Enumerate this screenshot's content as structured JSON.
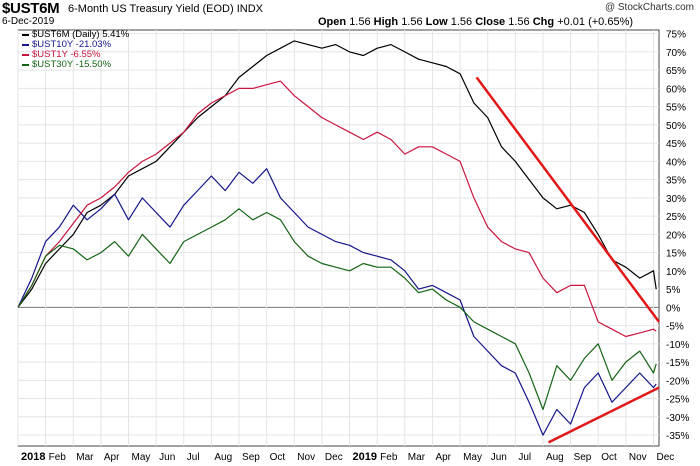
{
  "header": {
    "symbol": "$UST6M",
    "description": "6-Month US Treasury Yield (EOD)",
    "exchange": "INDX",
    "date": "6-Dec-2019",
    "watermark": "@ StockCharts.com",
    "open_label": "Open",
    "open": "1.56",
    "high_label": "High",
    "high": "1.56",
    "low_label": "Low",
    "low": "1.56",
    "close_label": "Close",
    "close": "1.56",
    "chg_label": "Chg",
    "chg": "+0.01 (+0.65%)"
  },
  "chart_data": {
    "type": "line",
    "ylim": [
      -38,
      76
    ],
    "yticks": [
      "75%",
      "70%",
      "65%",
      "60%",
      "55%",
      "50%",
      "45%",
      "40%",
      "35%",
      "30%",
      "25%",
      "20%",
      "15%",
      "10%",
      "5%",
      "0%",
      "-5%",
      "-10%",
      "-15%",
      "-20%",
      "-25%",
      "-30%",
      "-35%"
    ],
    "ytick_values": [
      75,
      70,
      65,
      60,
      55,
      50,
      45,
      40,
      35,
      30,
      25,
      20,
      15,
      10,
      5,
      0,
      -5,
      -10,
      -15,
      -20,
      -25,
      -30,
      -35
    ],
    "xticks": [
      "2018",
      "Feb",
      "Mar",
      "Apr",
      "May",
      "Jun",
      "Jul",
      "Aug",
      "Sep",
      "Oct",
      "Nov",
      "Dec",
      "2019",
      "Feb",
      "Mar",
      "Apr",
      "May",
      "Jun",
      "Jul",
      "Aug",
      "Sep",
      "Oct",
      "Nov",
      "Dec"
    ],
    "bold_xticks": [
      "2018",
      "2019"
    ],
    "x_range": [
      0,
      23.2
    ],
    "series": [
      {
        "name": "$UST6M (Daily) 5.41%",
        "color": "#000000",
        "x": [
          0,
          0.5,
          1,
          1.5,
          2,
          2.5,
          3,
          3.5,
          4,
          4.5,
          5,
          5.5,
          6,
          6.5,
          7,
          7.5,
          8,
          8.5,
          9,
          9.5,
          10,
          10.5,
          11,
          11.5,
          12,
          12.5,
          13,
          13.5,
          14,
          14.5,
          15,
          15.5,
          16,
          16.5,
          17,
          17.5,
          18,
          18.5,
          19,
          19.5,
          20,
          20.5,
          21,
          21.5,
          22,
          22.5,
          23,
          23.1
        ],
        "values": [
          0,
          5,
          12,
          16,
          20,
          26,
          28,
          31,
          36,
          38,
          40,
          44,
          48,
          52,
          55,
          58,
          63,
          66,
          69,
          71,
          73,
          72,
          71,
          72,
          70,
          69,
          71,
          72,
          70,
          68,
          67,
          66,
          64,
          56,
          52,
          44,
          40,
          35,
          30,
          27,
          28,
          26,
          20,
          13,
          11,
          8,
          10,
          5
        ]
      },
      {
        "name": "$UST10Y -21.03%",
        "color": "#14148c",
        "x": [
          0,
          0.5,
          1,
          1.5,
          2,
          2.5,
          3,
          3.5,
          4,
          4.5,
          5,
          5.5,
          6,
          6.5,
          7,
          7.5,
          8,
          8.5,
          9,
          9.5,
          10,
          10.5,
          11,
          11.5,
          12,
          12.5,
          13,
          13.5,
          14,
          14.5,
          15,
          15.5,
          16,
          16.5,
          17,
          17.5,
          18,
          18.5,
          19,
          19.5,
          20,
          20.5,
          21,
          21.5,
          22,
          22.5,
          23,
          23.1
        ],
        "values": [
          0,
          8,
          18,
          22,
          28,
          24,
          27,
          31,
          24,
          30,
          26,
          22,
          28,
          32,
          36,
          32,
          37,
          34,
          38,
          30,
          26,
          22,
          20,
          18,
          17,
          15,
          14,
          13,
          10,
          5,
          6,
          4,
          2,
          -8,
          -12,
          -16,
          -18,
          -26,
          -35,
          -28,
          -32,
          -22,
          -18,
          -26,
          -22,
          -18,
          -22,
          -21
        ]
      },
      {
        "name": "$UST1Y -6.55%",
        "color": "#c8143c",
        "x": [
          0,
          0.5,
          1,
          1.5,
          2,
          2.5,
          3,
          3.5,
          4,
          4.5,
          5,
          5.5,
          6,
          6.5,
          7,
          7.5,
          8,
          8.5,
          9,
          9.5,
          10,
          10.5,
          11,
          11.5,
          12,
          12.5,
          13,
          13.5,
          14,
          14.5,
          15,
          15.5,
          16,
          16.5,
          17,
          17.5,
          18,
          18.5,
          19,
          19.5,
          20,
          20.5,
          21,
          21.5,
          22,
          22.5,
          23,
          23.1
        ],
        "values": [
          0,
          6,
          14,
          18,
          23,
          28,
          30,
          33,
          37,
          40,
          42,
          45,
          48,
          53,
          56,
          58,
          60,
          60,
          61,
          62,
          58,
          55,
          52,
          50,
          48,
          46,
          48,
          46,
          42,
          44,
          44,
          42,
          40,
          30,
          22,
          18,
          16,
          15,
          8,
          4,
          6,
          6,
          -4,
          -6,
          -8,
          -7,
          -6,
          -6.5
        ]
      },
      {
        "name": "$UST30Y -15.50%",
        "color": "#146414",
        "x": [
          0,
          0.5,
          1,
          1.5,
          2,
          2.5,
          3,
          3.5,
          4,
          4.5,
          5,
          5.5,
          6,
          6.5,
          7,
          7.5,
          8,
          8.5,
          9,
          9.5,
          10,
          10.5,
          11,
          11.5,
          12,
          12.5,
          13,
          13.5,
          14,
          14.5,
          15,
          15.5,
          16,
          16.5,
          17,
          17.5,
          18,
          18.5,
          19,
          19.5,
          20,
          20.5,
          21,
          21.5,
          22,
          22.5,
          23,
          23.1
        ],
        "values": [
          0,
          6,
          14,
          17,
          16,
          13,
          15,
          18,
          14,
          20,
          16,
          12,
          18,
          20,
          22,
          24,
          27,
          24,
          26,
          24,
          18,
          14,
          12,
          11,
          10,
          12,
          11,
          11,
          8,
          4,
          5,
          2,
          0,
          -4,
          -6,
          -8,
          -10,
          -18,
          -28,
          -16,
          -20,
          -14,
          -10,
          -20,
          -15,
          -12,
          -18,
          -15.5
        ]
      },
      {
        "name": "",
        "color": "#e01818",
        "trendline": true,
        "x": [
          16.6,
          23.2
        ],
        "values": [
          63,
          -4
        ]
      },
      {
        "name": "",
        "color": "#e01818",
        "trendline": true,
        "x": [
          19.2,
          23.2
        ],
        "values": [
          -37,
          -22
        ]
      }
    ]
  }
}
